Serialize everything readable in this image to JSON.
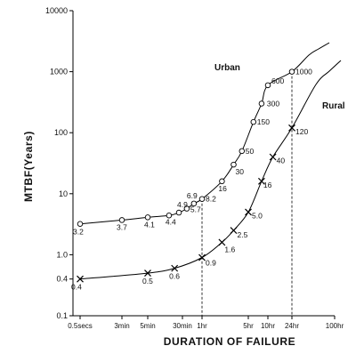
{
  "chart_data": {
    "type": "line",
    "title": "",
    "xlabel": "DURATION OF FAILURE",
    "ylabel": "MTBF(Years)",
    "yscale": "log",
    "ylim": [
      0.1,
      10000
    ],
    "xscale": "log",
    "x_ticks": [
      {
        "label": "0.5secs",
        "seconds": 0.5
      },
      {
        "label": "3min",
        "seconds": 180
      },
      {
        "label": "5min",
        "seconds": 300
      },
      {
        "label": "30min",
        "seconds": 1800
      },
      {
        "label": "1hr",
        "seconds": 3600
      },
      {
        "label": "5hr",
        "seconds": 18000
      },
      {
        "label": "10hr",
        "seconds": 36000
      },
      {
        "label": "24hr",
        "seconds": 86400
      },
      {
        "label": "100hr",
        "seconds": 360000
      }
    ],
    "y_ticks": [
      {
        "label": "0.1",
        "value": 0.1
      },
      {
        "label": "0.4",
        "value": 0.4
      },
      {
        "label": "1.0",
        "value": 1
      },
      {
        "label": "10",
        "value": 10
      },
      {
        "label": "100",
        "value": 100
      },
      {
        "label": "1000",
        "value": 1000
      },
      {
        "label": "10000",
        "value": 10000
      }
    ],
    "series": [
      {
        "name": "Urban",
        "marker": "circle",
        "points": [
          {
            "x": 0.5,
            "y": 3.2,
            "label": "3.2"
          },
          {
            "x": 180,
            "y": 3.7,
            "label": "3.7"
          },
          {
            "x": 300,
            "y": 4.1,
            "label": "4.1"
          },
          {
            "x": 900,
            "y": 4.4,
            "label": "4.4"
          },
          {
            "x": 1500,
            "y": 4.9,
            "label": "4.9"
          },
          {
            "x": 2100,
            "y": 5.7,
            "label": "5.7"
          },
          {
            "x": 2700,
            "y": 6.9,
            "label": "6.9"
          },
          {
            "x": 3600,
            "y": 8.2,
            "label": "8.2"
          },
          {
            "x": 7200,
            "y": 16,
            "label": "16"
          },
          {
            "x": 10800,
            "y": 30,
            "label": "30"
          },
          {
            "x": 14400,
            "y": 50,
            "label": "50"
          },
          {
            "x": 21600,
            "y": 150,
            "label": "150"
          },
          {
            "x": 28800,
            "y": 300,
            "label": "300"
          },
          {
            "x": 36000,
            "y": 600,
            "label": "600"
          },
          {
            "x": 86400,
            "y": 1000,
            "label": "1000"
          }
        ]
      },
      {
        "name": "Rural",
        "marker": "x",
        "points": [
          {
            "x": 0.5,
            "y": 0.4,
            "label": "0.4"
          },
          {
            "x": 300,
            "y": 0.5,
            "label": "0.5"
          },
          {
            "x": 1200,
            "y": 0.6,
            "label": "0.6"
          },
          {
            "x": 3600,
            "y": 0.9,
            "label": "0.9"
          },
          {
            "x": 7200,
            "y": 1.6,
            "label": "1.6"
          },
          {
            "x": 10800,
            "y": 2.5,
            "label": "2.5"
          },
          {
            "x": 18000,
            "y": 5.0,
            "label": "5.0"
          },
          {
            "x": 28800,
            "y": 16,
            "label": "16"
          },
          {
            "x": 43200,
            "y": 40,
            "label": "40"
          },
          {
            "x": 86400,
            "y": 120,
            "label": "120"
          }
        ]
      }
    ],
    "reference_lines": [
      {
        "x_label": "1hr",
        "seconds": 3600
      },
      {
        "x_label": "24hr",
        "seconds": 86400
      }
    ],
    "grid": false,
    "legend": "inline labels near curves"
  }
}
